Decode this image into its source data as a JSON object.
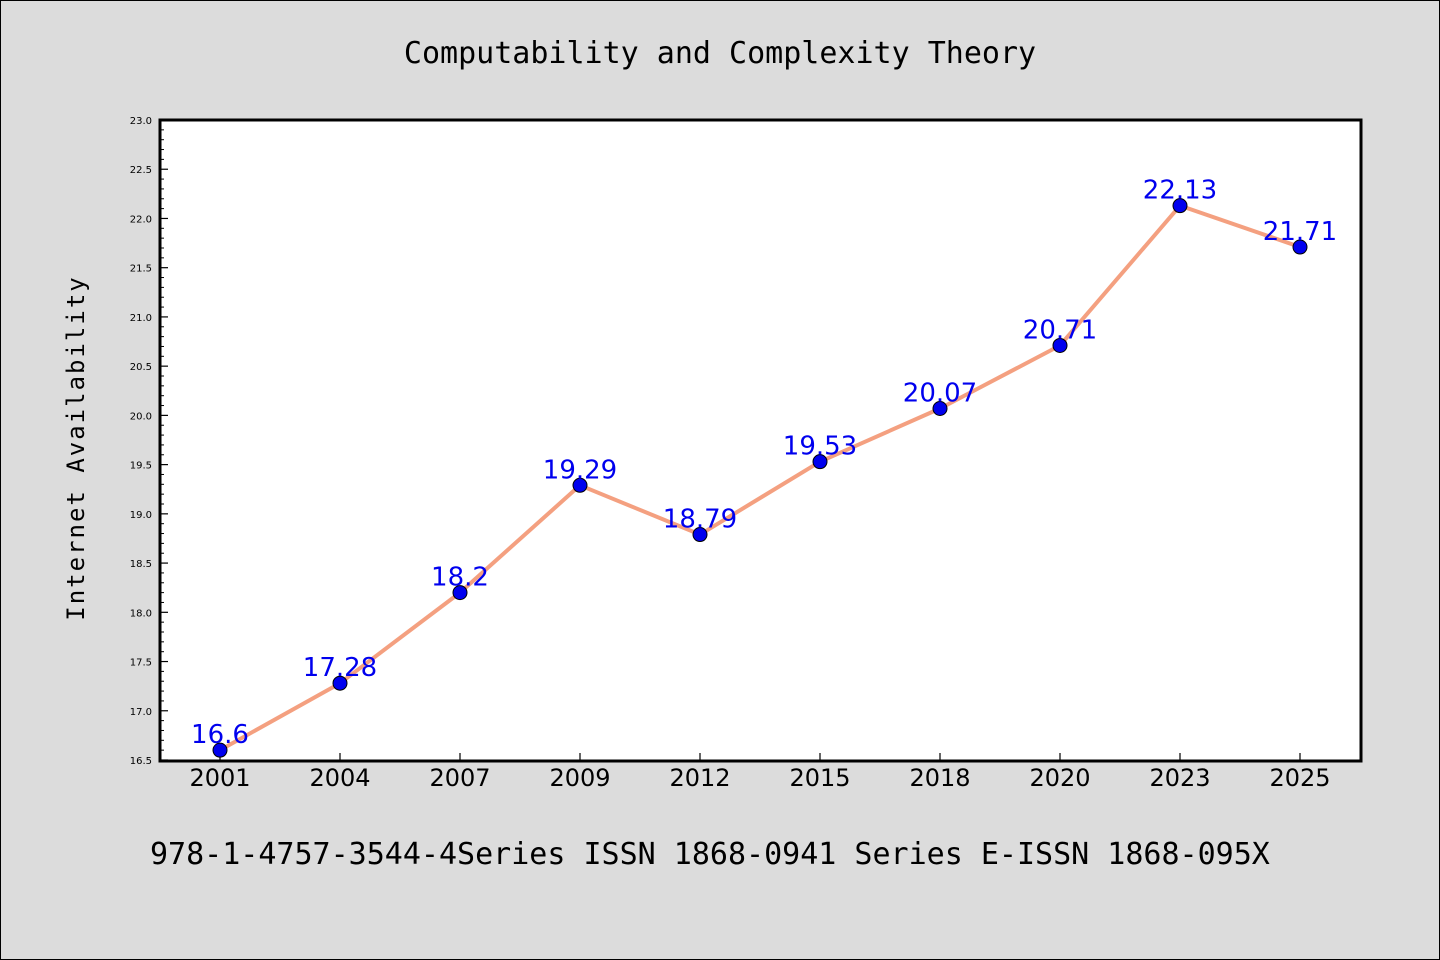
{
  "chart_data": {
    "type": "line",
    "title": "Computability and Complexity Theory",
    "ylabel": "Internet Availability",
    "xlabel": "",
    "categories": [
      "2001",
      "2004",
      "2007",
      "2009",
      "2012",
      "2015",
      "2018",
      "2020",
      "2023",
      "2025"
    ],
    "series": [
      {
        "values": [
          16.6,
          17.28,
          18.2,
          19.29,
          18.79,
          19.53,
          20.07,
          20.71,
          22.13,
          21.71
        ],
        "data_labels": [
          "16.6",
          "17.28",
          "18.2",
          "19.29",
          "18.79",
          "19.53",
          "20.07",
          "20.71",
          "22.13",
          "21.71"
        ]
      }
    ],
    "ylim": [
      16.5,
      23.0
    ],
    "yticks": [
      "16.5",
      "17.0",
      "17.5",
      "18.0",
      "18.5",
      "19.0",
      "19.5",
      "20.0",
      "20.5",
      "21.0",
      "21.5",
      "22.0",
      "22.5",
      "23.0"
    ],
    "grid": false,
    "legend": "none"
  },
  "footer": "978-1-4757-3544-4Series ISSN 1868-0941 Series E-ISSN 1868-095X",
  "colors": {
    "line": "#f4a080",
    "marker": "#0000ee",
    "label": "#0000ee",
    "background": "#dcdcdc",
    "plot_background": "#ffffff"
  }
}
